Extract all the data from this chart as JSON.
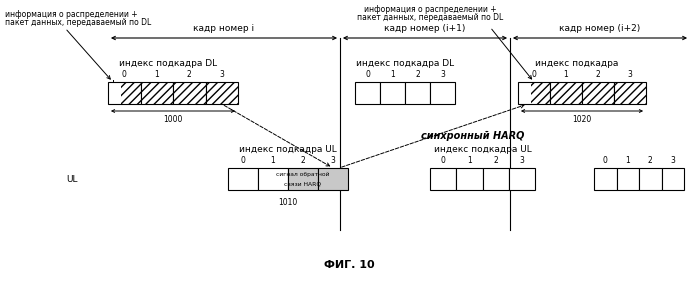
{
  "bg_color": "#ffffff",
  "fig_caption": "ФИГ. 10",
  "frame_labels": [
    "кадр номер i",
    "кадр номер (i+1)",
    "кадр номер (i+2)"
  ],
  "dl_label": "индекс подкадра DL",
  "ul_label": "индекс подкадра UL",
  "subframe_label": "индекс подкадра",
  "label_1000": "1000",
  "label_1010": "1010",
  "label_1020": "1020",
  "anno_top_left_line1": "информация о распределении +",
  "anno_top_left_line2": "пакет данных, передаваемый по DL",
  "anno_top_mid_line1": "информация о распределении +",
  "anno_top_mid_line2": "пакет данных, передаваемый по DL",
  "harq_label": "синхронный HARQ",
  "harq_feedback_line1": "сигнал обратной",
  "harq_feedback_line2": "связи HARQ",
  "ul_side_label": "UL",
  "cell_indices": [
    "0",
    "1",
    "2",
    "3"
  ]
}
